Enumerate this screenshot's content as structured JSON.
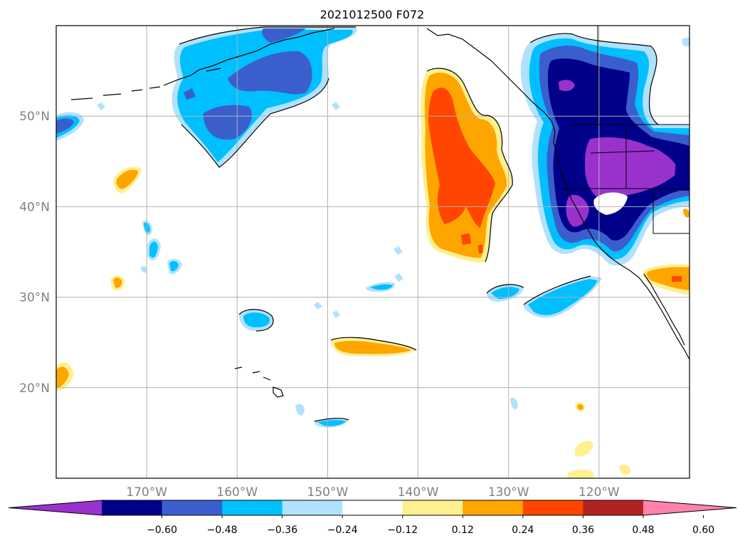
{
  "title": "2021012500 F072",
  "map": {
    "lat_range": [
      10,
      60
    ],
    "lon_range": [
      -180,
      -110
    ],
    "lat_ticks": [
      {
        "value": 20,
        "label": "20°N"
      },
      {
        "value": 30,
        "label": "30°N"
      },
      {
        "value": 40,
        "label": "40°N"
      },
      {
        "value": 50,
        "label": "50°N"
      }
    ],
    "lon_ticks": [
      {
        "value": -170,
        "label": "170°W"
      },
      {
        "value": -160,
        "label": "160°W"
      },
      {
        "value": -150,
        "label": "150°W"
      },
      {
        "value": -140,
        "label": "140°W"
      },
      {
        "value": -130,
        "label": "130°W"
      },
      {
        "value": -120,
        "label": "120°W"
      }
    ],
    "label_color": "#808080",
    "grid_color": "#b0b0b0"
  },
  "colorbar": {
    "colors": [
      "#9932cc",
      "#00008b",
      "#3a5fcd",
      "#00bfff",
      "#b0e2ff",
      "#ffffff",
      "#fff08f",
      "#ffa500",
      "#ff4500",
      "#b22222",
      "#ff82ab"
    ],
    "tick_labels": [
      "−0.60",
      "−0.48",
      "−0.36",
      "−0.24",
      "−0.12",
      "0.12",
      "0.24",
      "0.36",
      "0.48",
      "0.60"
    ]
  },
  "colors": {
    "v_lt_-0.60": "#9932cc",
    "v_-0.60_-0.48": "#00008b",
    "v_-0.48_-0.36": "#3a5fcd",
    "v_-0.36_-0.24": "#00bfff",
    "v_-0.24_-0.12": "#b0e2ff",
    "v_0.12_0.24": "#fff08f",
    "v_0.24_0.36": "#ffa500",
    "v_0.36_0.48": "#ff4500"
  }
}
